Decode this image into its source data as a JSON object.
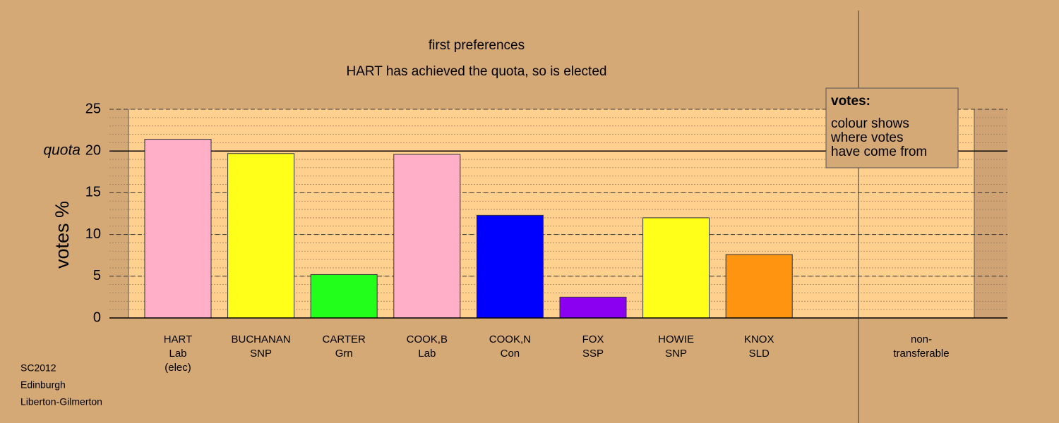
{
  "chart_data": {
    "type": "bar",
    "title": "first preferences",
    "subtitle": "HART has achieved the quota, so is elected",
    "y_label": "votes %",
    "categories": [
      [
        "HART",
        "Lab",
        "(elec)"
      ],
      [
        "BUCHANAN",
        "SNP"
      ],
      [
        "CARTER",
        "Grn"
      ],
      [
        "COOK,B",
        "Lab"
      ],
      [
        "COOK,N",
        "Con"
      ],
      [
        "FOX",
        "SSP"
      ],
      [
        "HOWIE",
        "SNP"
      ],
      [
        "KNOX",
        "SLD"
      ],
      [
        "non-",
        "transferable"
      ]
    ],
    "values": [
      21.4,
      19.7,
      5.2,
      19.6,
      12.3,
      2.5,
      12.0,
      7.6,
      0
    ],
    "colors": [
      "#ffb0c8",
      "#ffff1a",
      "#22ff1a",
      "#ffb0c8",
      "#0000ff",
      "#8b00f0",
      "#ffff1a",
      "#ff9410",
      null
    ],
    "ylim": [
      0,
      25
    ],
    "yticks": [
      0,
      5,
      10,
      15,
      20,
      25
    ],
    "quota": 20,
    "quota_label": "quota",
    "grid": true,
    "legend": {
      "title": "votes:",
      "lines": [
        "colour shows",
        "where votes",
        "have come from"
      ]
    },
    "footnote": [
      "SC2012",
      "Edinburgh",
      "Liberton-Gilmerton"
    ]
  }
}
